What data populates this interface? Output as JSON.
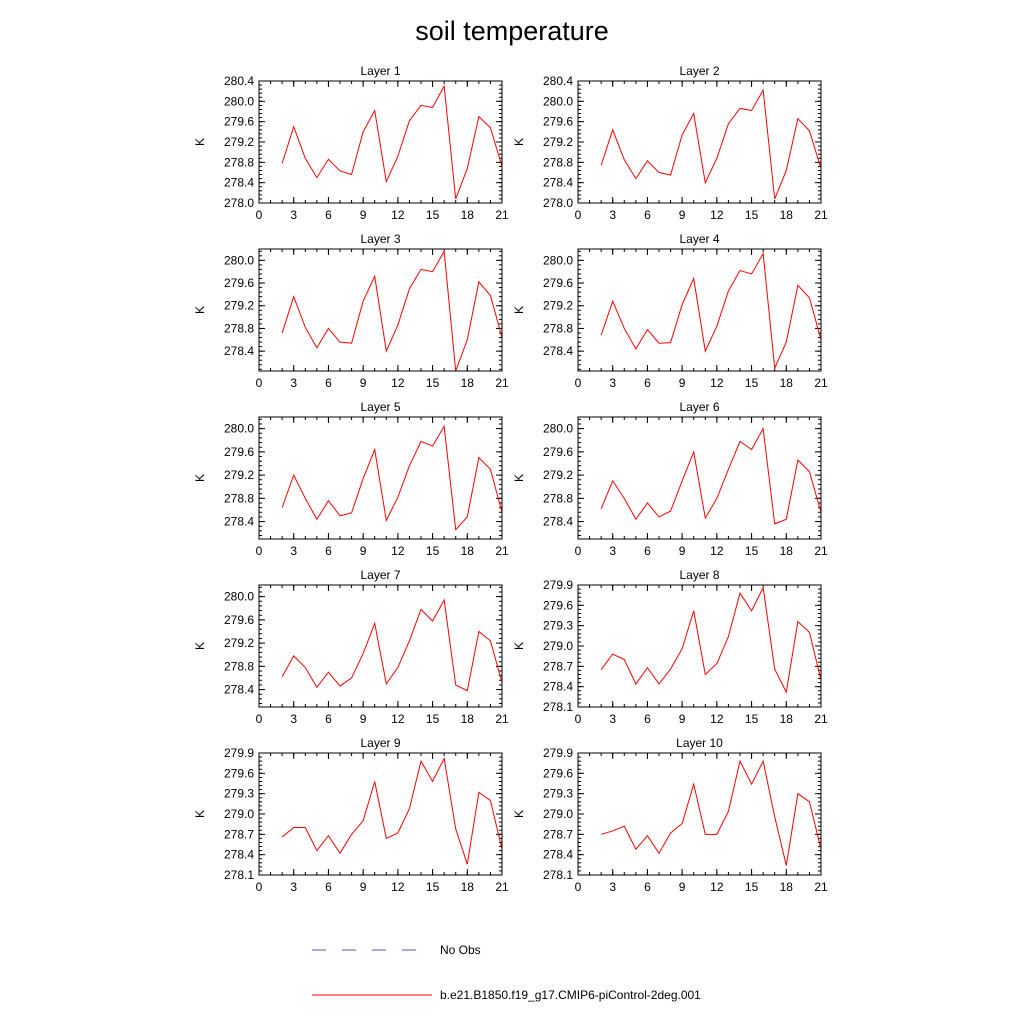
{
  "title": "soil temperature",
  "chart_data": [
    {
      "type": "line",
      "title": "Layer 1",
      "ylabel": "K",
      "xlim": [
        0,
        21
      ],
      "ylim": [
        278.0,
        280.4
      ],
      "xticks": [
        "0",
        "3",
        "6",
        "9",
        "12",
        "15",
        "18",
        "21"
      ],
      "yticks": [
        "278.0",
        "278.4",
        "278.8",
        "279.2",
        "279.6",
        "280.0",
        "280.4"
      ],
      "series": [
        {
          "name": "b.e21.B1850.f19_g17.CMIP6-piControl-2deg.001",
          "color": "#ff0000",
          "x": [
            2,
            3,
            4,
            5,
            6,
            7,
            8,
            9,
            10,
            11,
            12,
            13,
            14,
            15,
            16,
            17,
            18,
            19,
            20,
            21
          ],
          "y": [
            278.78,
            279.5,
            278.88,
            278.5,
            278.86,
            278.63,
            278.56,
            279.4,
            279.82,
            278.42,
            278.92,
            279.62,
            279.92,
            279.88,
            280.3,
            278.08,
            278.68,
            279.7,
            279.48,
            278.72
          ]
        }
      ]
    },
    {
      "type": "line",
      "title": "Layer 2",
      "ylabel": "K",
      "xlim": [
        0,
        21
      ],
      "ylim": [
        278.0,
        280.4
      ],
      "xticks": [
        "0",
        "3",
        "6",
        "9",
        "12",
        "15",
        "18",
        "21"
      ],
      "yticks": [
        "278.0",
        "278.4",
        "278.8",
        "279.2",
        "279.6",
        "280.0",
        "280.4"
      ],
      "series": [
        {
          "name": "b.e21.B1850.f19_g17.CMIP6-piControl-2deg.001",
          "color": "#ff0000",
          "x": [
            2,
            3,
            4,
            5,
            6,
            7,
            8,
            9,
            10,
            11,
            12,
            13,
            14,
            15,
            16,
            17,
            18,
            19,
            20,
            21
          ],
          "y": [
            278.74,
            279.44,
            278.85,
            278.48,
            278.83,
            278.6,
            278.55,
            279.34,
            279.76,
            278.4,
            278.88,
            279.56,
            279.86,
            279.82,
            280.22,
            278.08,
            278.64,
            279.66,
            279.42,
            278.68
          ]
        }
      ]
    },
    {
      "type": "line",
      "title": "Layer 3",
      "ylabel": "K",
      "xlim": [
        0,
        21
      ],
      "ylim": [
        278.05,
        280.2
      ],
      "xticks": [
        "0",
        "3",
        "6",
        "9",
        "12",
        "15",
        "18",
        "21"
      ],
      "yticks": [
        "278.4",
        "278.8",
        "279.2",
        "279.6",
        "280.0"
      ],
      "series": [
        {
          "name": "b.e21.B1850.f19_g17.CMIP6-piControl-2deg.001",
          "color": "#ff0000",
          "x": [
            2,
            3,
            4,
            5,
            6,
            7,
            8,
            9,
            10,
            11,
            12,
            13,
            14,
            15,
            16,
            17,
            18,
            19,
            20,
            21
          ],
          "y": [
            278.72,
            279.36,
            278.82,
            278.46,
            278.8,
            278.56,
            278.54,
            279.28,
            279.72,
            278.4,
            278.86,
            279.5,
            279.84,
            279.8,
            280.16,
            278.05,
            278.6,
            279.62,
            279.38,
            278.64
          ]
        }
      ]
    },
    {
      "type": "line",
      "title": "Layer 4",
      "ylabel": "K",
      "xlim": [
        0,
        21
      ],
      "ylim": [
        278.05,
        280.2
      ],
      "xticks": [
        "0",
        "3",
        "6",
        "9",
        "12",
        "15",
        "18",
        "21"
      ],
      "yticks": [
        "278.4",
        "278.8",
        "279.2",
        "279.6",
        "280.0"
      ],
      "series": [
        {
          "name": "b.e21.B1850.f19_g17.CMIP6-piControl-2deg.001",
          "color": "#ff0000",
          "x": [
            2,
            3,
            4,
            5,
            6,
            7,
            8,
            9,
            10,
            11,
            12,
            13,
            14,
            15,
            16,
            17,
            18,
            19,
            20,
            21
          ],
          "y": [
            278.68,
            279.28,
            278.8,
            278.44,
            278.78,
            278.54,
            278.55,
            279.22,
            279.68,
            278.4,
            278.84,
            279.46,
            279.82,
            279.76,
            280.12,
            278.1,
            278.56,
            279.56,
            279.34,
            278.6
          ]
        }
      ]
    },
    {
      "type": "line",
      "title": "Layer 5",
      "ylabel": "K",
      "xlim": [
        0,
        21
      ],
      "ylim": [
        278.1,
        280.2
      ],
      "xticks": [
        "0",
        "3",
        "6",
        "9",
        "12",
        "15",
        "18",
        "21"
      ],
      "yticks": [
        "278.4",
        "278.8",
        "279.2",
        "279.6",
        "280.0"
      ],
      "series": [
        {
          "name": "b.e21.B1850.f19_g17.CMIP6-piControl-2deg.001",
          "color": "#ff0000",
          "x": [
            2,
            3,
            4,
            5,
            6,
            7,
            8,
            9,
            10,
            11,
            12,
            13,
            14,
            15,
            16,
            17,
            18,
            19,
            20,
            21
          ],
          "y": [
            278.64,
            279.2,
            278.8,
            278.44,
            278.76,
            278.5,
            278.55,
            279.14,
            279.64,
            278.42,
            278.82,
            279.36,
            279.78,
            279.7,
            280.04,
            278.26,
            278.48,
            279.5,
            279.3,
            278.56
          ]
        }
      ]
    },
    {
      "type": "line",
      "title": "Layer 6",
      "ylabel": "K",
      "xlim": [
        0,
        21
      ],
      "ylim": [
        278.1,
        280.2
      ],
      "xticks": [
        "0",
        "3",
        "6",
        "9",
        "12",
        "15",
        "18",
        "21"
      ],
      "yticks": [
        "278.4",
        "278.8",
        "279.2",
        "279.6",
        "280.0"
      ],
      "series": [
        {
          "name": "b.e21.B1850.f19_g17.CMIP6-piControl-2deg.001",
          "color": "#ff0000",
          "x": [
            2,
            3,
            4,
            5,
            6,
            7,
            8,
            9,
            10,
            11,
            12,
            13,
            14,
            15,
            16,
            17,
            18,
            19,
            20,
            21
          ],
          "y": [
            278.62,
            279.1,
            278.8,
            278.44,
            278.72,
            278.48,
            278.58,
            279.1,
            279.6,
            278.46,
            278.8,
            279.3,
            279.78,
            279.64,
            280.0,
            278.36,
            278.44,
            279.46,
            279.26,
            278.56
          ]
        }
      ]
    },
    {
      "type": "line",
      "title": "Layer 7",
      "ylabel": "K",
      "xlim": [
        0,
        21
      ],
      "ylim": [
        278.1,
        280.2
      ],
      "xticks": [
        "0",
        "3",
        "6",
        "9",
        "12",
        "15",
        "18",
        "21"
      ],
      "yticks": [
        "278.4",
        "278.8",
        "279.2",
        "279.6",
        "280.0"
      ],
      "series": [
        {
          "name": "b.e21.B1850.f19_g17.CMIP6-piControl-2deg.001",
          "color": "#ff0000",
          "x": [
            2,
            3,
            4,
            5,
            6,
            7,
            8,
            9,
            10,
            11,
            12,
            13,
            14,
            15,
            16,
            17,
            18,
            19,
            20,
            21
          ],
          "y": [
            278.62,
            278.98,
            278.78,
            278.44,
            278.7,
            278.46,
            278.6,
            279.02,
            279.54,
            278.5,
            278.78,
            279.24,
            279.78,
            279.58,
            279.94,
            278.48,
            278.38,
            279.4,
            279.24,
            278.52
          ]
        }
      ]
    },
    {
      "type": "line",
      "title": "Layer 8",
      "ylabel": "K",
      "xlim": [
        0,
        21
      ],
      "ylim": [
        278.1,
        279.9
      ],
      "xticks": [
        "0",
        "3",
        "6",
        "9",
        "12",
        "15",
        "18",
        "21"
      ],
      "yticks": [
        "278.1",
        "278.4",
        "278.7",
        "279.0",
        "279.3",
        "279.6",
        "279.9"
      ],
      "series": [
        {
          "name": "b.e21.B1850.f19_g17.CMIP6-piControl-2deg.001",
          "color": "#ff0000",
          "x": [
            2,
            3,
            4,
            5,
            6,
            7,
            8,
            9,
            10,
            11,
            12,
            13,
            14,
            15,
            16,
            17,
            18,
            19,
            20,
            21
          ],
          "y": [
            278.65,
            278.88,
            278.8,
            278.44,
            278.68,
            278.44,
            278.66,
            278.96,
            279.52,
            278.58,
            278.74,
            279.14,
            279.78,
            279.52,
            279.86,
            278.66,
            278.32,
            279.36,
            279.2,
            278.5
          ]
        }
      ]
    },
    {
      "type": "line",
      "title": "Layer 9",
      "ylabel": "K",
      "xlim": [
        0,
        21
      ],
      "ylim": [
        278.1,
        279.9
      ],
      "xticks": [
        "0",
        "3",
        "6",
        "9",
        "12",
        "15",
        "18",
        "21"
      ],
      "yticks": [
        "278.1",
        "278.4",
        "278.7",
        "279.0",
        "279.3",
        "279.6",
        "279.9"
      ],
      "series": [
        {
          "name": "b.e21.B1850.f19_g17.CMIP6-piControl-2deg.001",
          "color": "#ff0000",
          "x": [
            2,
            3,
            4,
            5,
            6,
            7,
            8,
            9,
            10,
            11,
            12,
            13,
            14,
            15,
            16,
            17,
            18,
            19,
            20,
            21
          ],
          "y": [
            278.66,
            278.8,
            278.8,
            278.46,
            278.68,
            278.42,
            278.7,
            278.9,
            279.48,
            278.64,
            278.72,
            279.08,
            279.78,
            279.48,
            279.82,
            278.78,
            278.26,
            279.32,
            279.2,
            278.48
          ]
        }
      ]
    },
    {
      "type": "line",
      "title": "Layer 10",
      "ylabel": "K",
      "xlim": [
        0,
        21
      ],
      "ylim": [
        278.1,
        279.9
      ],
      "xticks": [
        "0",
        "3",
        "6",
        "9",
        "12",
        "15",
        "18",
        "21"
      ],
      "yticks": [
        "278.1",
        "278.4",
        "278.7",
        "279.0",
        "279.3",
        "279.6",
        "279.9"
      ],
      "series": [
        {
          "name": "b.e21.B1850.f19_g17.CMIP6-piControl-2deg.001",
          "color": "#ff0000",
          "x": [
            2,
            3,
            4,
            5,
            6,
            7,
            8,
            9,
            10,
            11,
            12,
            13,
            14,
            15,
            16,
            17,
            18,
            19,
            20,
            21
          ],
          "y": [
            278.7,
            278.75,
            278.82,
            278.48,
            278.68,
            278.42,
            278.72,
            278.86,
            279.44,
            278.7,
            278.7,
            279.04,
            279.78,
            279.44,
            279.78,
            278.96,
            278.24,
            279.3,
            279.18,
            278.48
          ]
        }
      ]
    }
  ],
  "legend": [
    {
      "label": "No Obs",
      "color": "#5555bb",
      "style": "dashed"
    },
    {
      "label": "b.e21.B1850.f19_g17.CMIP6-piControl-2deg.001",
      "color": "#ff0000",
      "style": "solid"
    }
  ]
}
